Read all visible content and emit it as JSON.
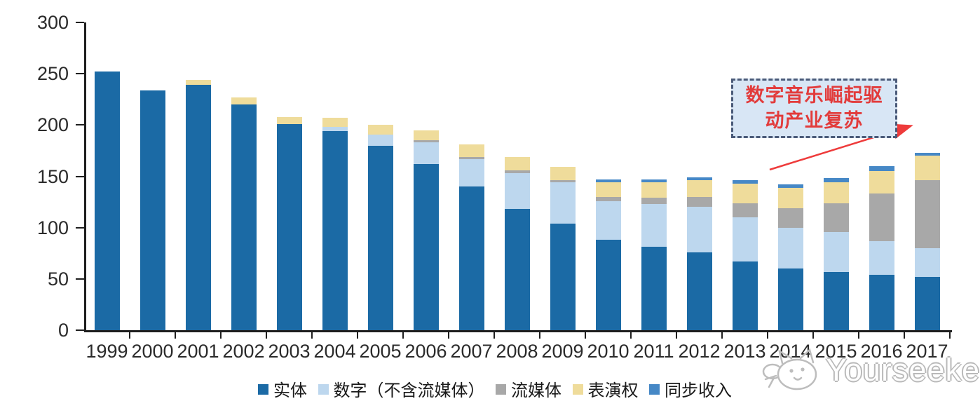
{
  "chart_data": {
    "type": "bar",
    "stacked": true,
    "categories": [
      "1999",
      "2000",
      "2001",
      "2002",
      "2003",
      "2004",
      "2005",
      "2006",
      "2007",
      "2008",
      "2009",
      "2010",
      "2011",
      "2012",
      "2013",
      "2014",
      "2015",
      "2016",
      "2017"
    ],
    "series": [
      {
        "name": "实体",
        "color": "#1b6aa5",
        "values": [
          252,
          234,
          239,
          220,
          201,
          194,
          180,
          162,
          140,
          118,
          104,
          88,
          81,
          76,
          67,
          60,
          57,
          54,
          52
        ]
      },
      {
        "name": "数字（不含流媒体）",
        "color": "#bdd7ee",
        "values": [
          0,
          0,
          0,
          0,
          0,
          4,
          11,
          21,
          27,
          35,
          40,
          38,
          42,
          44,
          43,
          40,
          39,
          33,
          28
        ]
      },
      {
        "name": "流媒体",
        "color": "#a8a8a8",
        "values": [
          0,
          0,
          0,
          0,
          0,
          0,
          0,
          2,
          2,
          3,
          2,
          4,
          6,
          10,
          14,
          19,
          28,
          46,
          66
        ]
      },
      {
        "name": "表演权",
        "color": "#efdc9b",
        "values": [
          0,
          0,
          5,
          7,
          7,
          9,
          9,
          10,
          12,
          13,
          13,
          14,
          15,
          16,
          19,
          20,
          20,
          22,
          24
        ]
      },
      {
        "name": "同步收入",
        "color": "#4688c6",
        "values": [
          0,
          0,
          0,
          0,
          0,
          0,
          0,
          0,
          0,
          0,
          0,
          3,
          3,
          3,
          3,
          3,
          4,
          5,
          3
        ]
      }
    ],
    "totals": [
      252,
      234,
      244,
      227,
      208,
      207,
      200,
      195,
      181,
      169,
      159,
      147,
      147,
      149,
      146,
      142,
      148,
      160,
      173
    ],
    "title": "",
    "xlabel": "",
    "ylabel": "",
    "ylim": [
      0,
      300
    ],
    "yticks": [
      0,
      50,
      100,
      150,
      200,
      250,
      300
    ],
    "grid": false,
    "legend_position": "bottom"
  },
  "annotation": {
    "full_text": "数字音乐崛起驱动产业复苏",
    "line1": "数字音乐崛起驱",
    "line2": "动产业复苏",
    "text_color": "#e23b3b",
    "box_fill": "#d8e6f5",
    "box_border": "#4a5a78",
    "arrow_color": "#ee3b3b"
  },
  "watermark": {
    "text": "Yourseeker",
    "logo": "cat-doodle-icon"
  }
}
